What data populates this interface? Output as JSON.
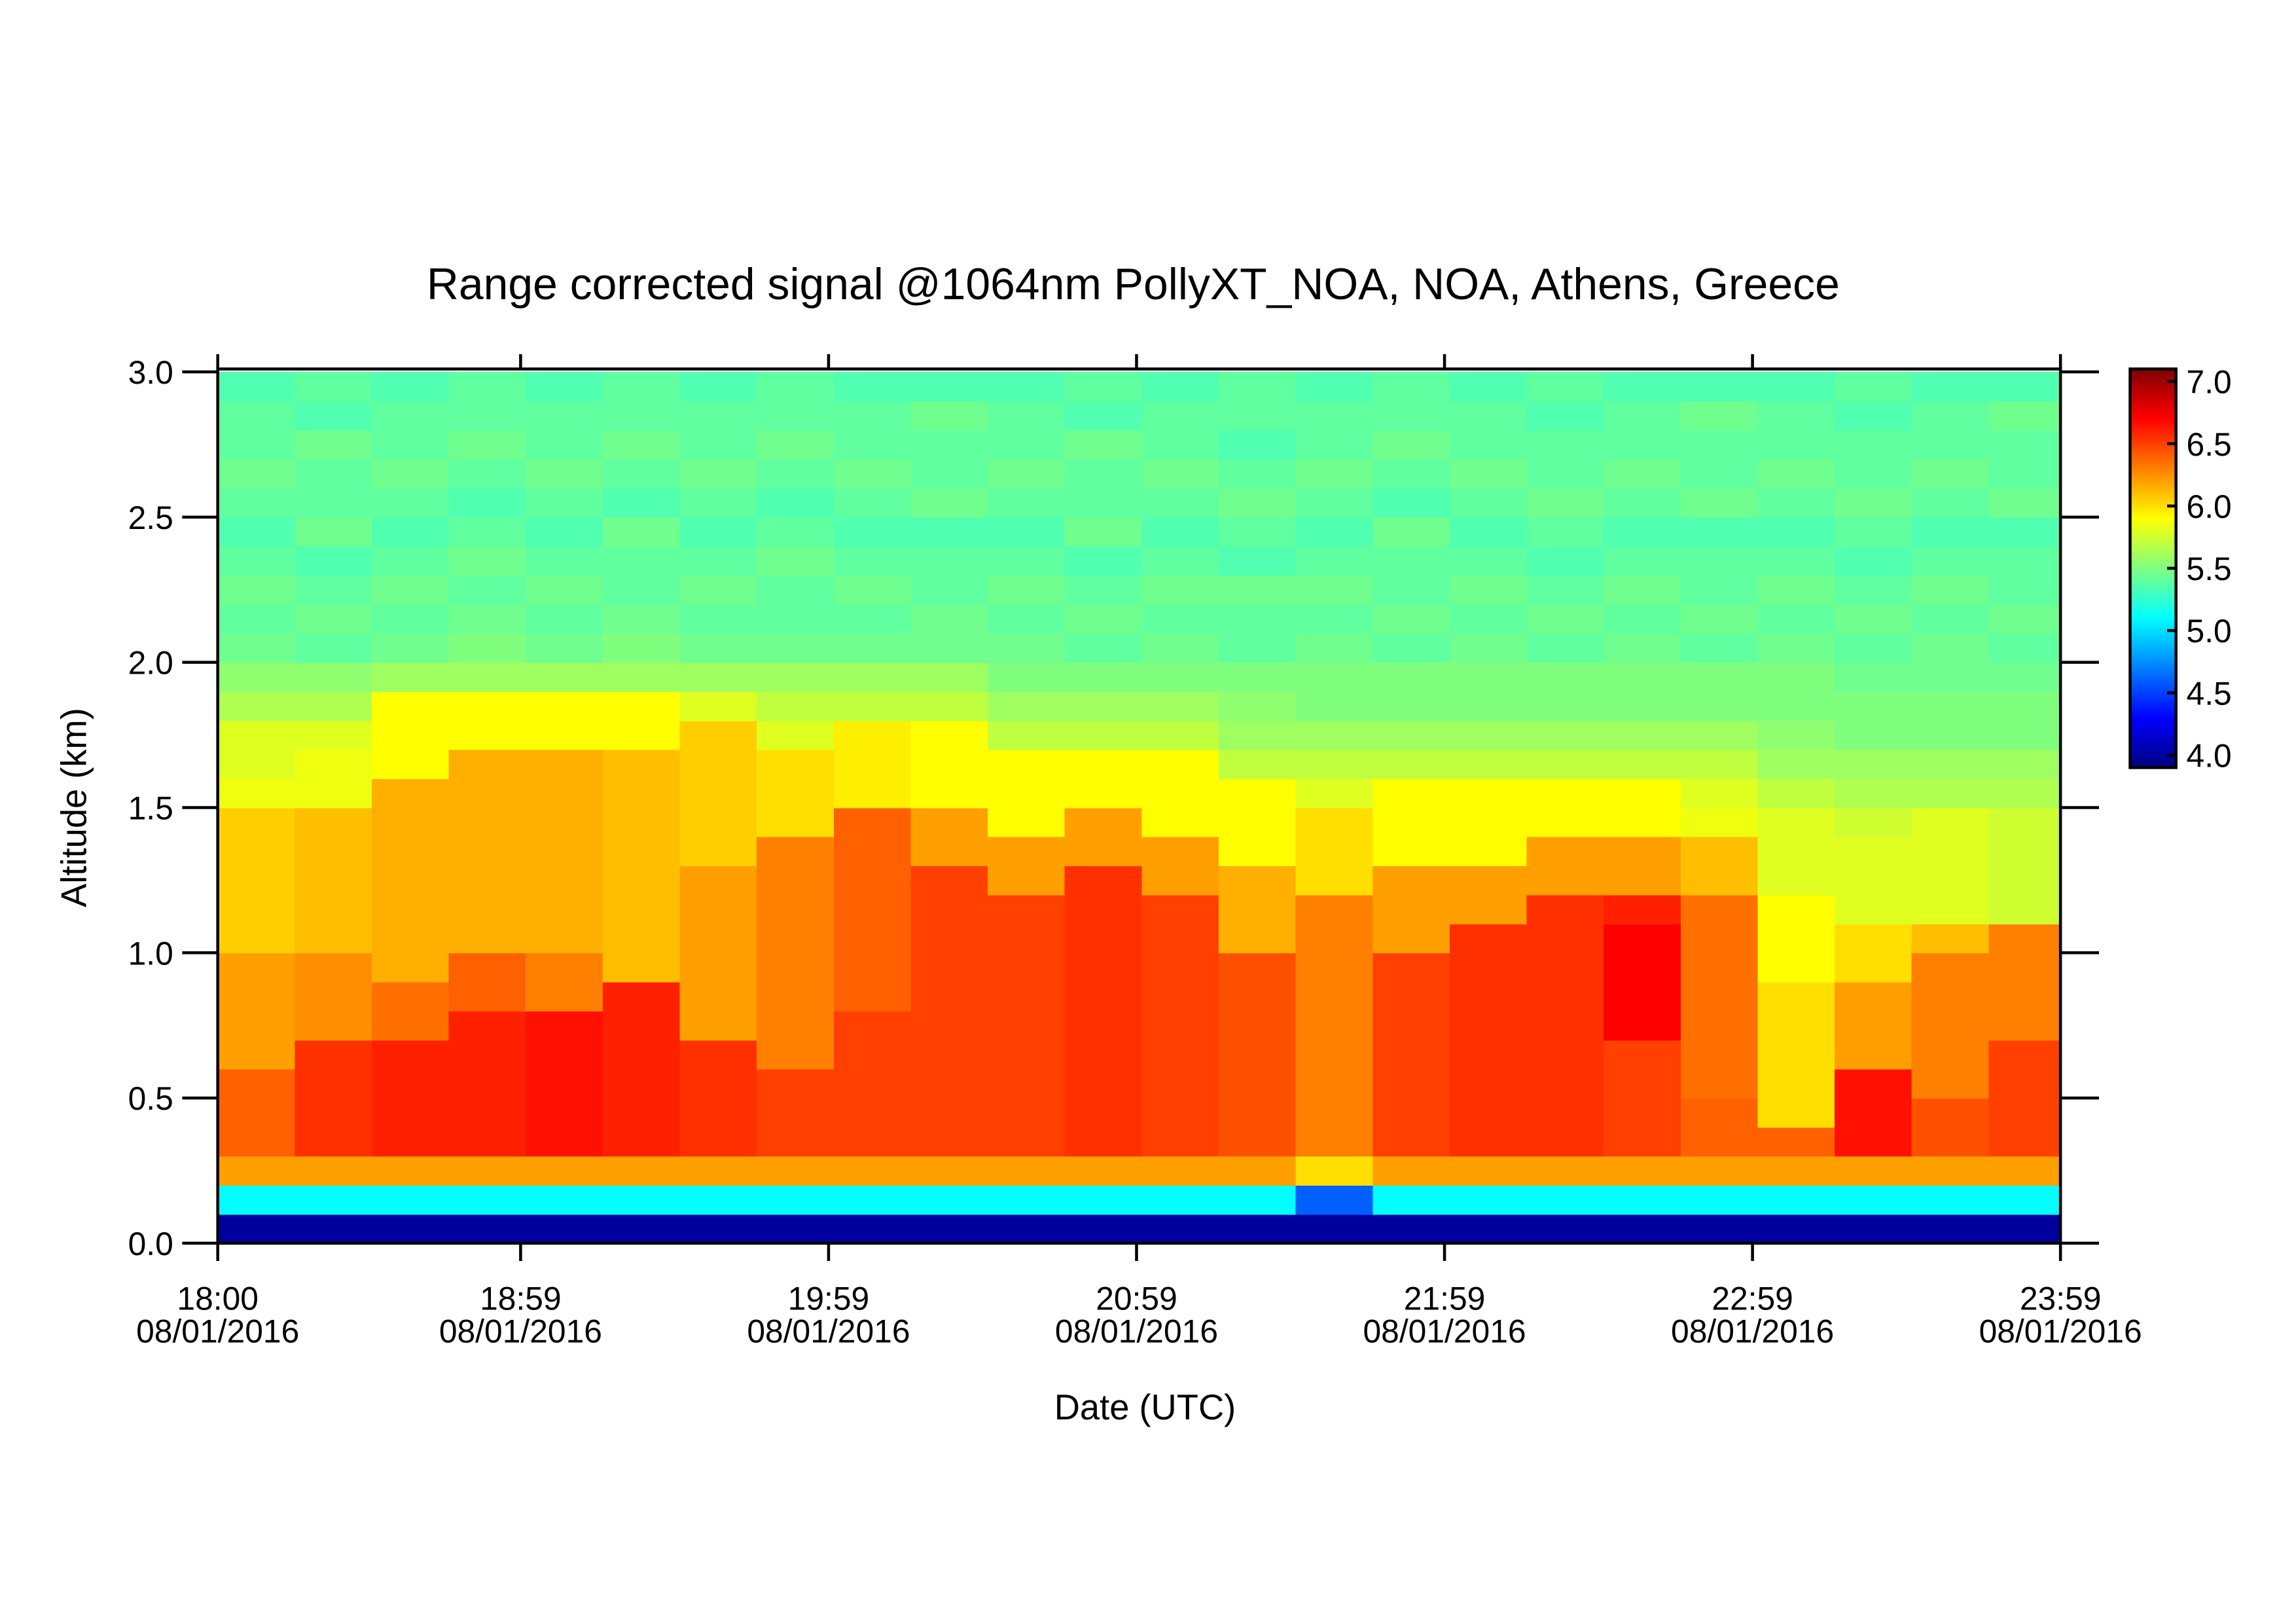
{
  "chart_data": {
    "type": "heatmap",
    "title": "Range corrected signal @1064nm  PollyXT_NOA, NOA, Athens, Greece",
    "xlabel": "Date (UTC)",
    "ylabel": "Altitude (km)",
    "xlim": [
      "18:00",
      "23:59"
    ],
    "xticks": [
      "18:00",
      "18:59",
      "19:59",
      "20:59",
      "21:59",
      "22:59",
      "23:59"
    ],
    "xtick_dates": [
      "08/01/2016",
      "08/01/2016",
      "08/01/2016",
      "08/01/2016",
      "08/01/2016",
      "08/01/2016",
      "08/01/2016"
    ],
    "ylim": [
      0,
      3.01
    ],
    "yticks": [
      {
        "value": 0,
        "label": "0.0"
      },
      0.5,
      {
        "value": 1,
        "label": "1.0"
      },
      1.5,
      {
        "value": 2,
        "label": "2.0"
      },
      2.5,
      {
        "value": 3,
        "label": "3.0"
      }
    ],
    "zlim": [
      3.9,
      7.1
    ],
    "zticks": [
      {
        "value": 4,
        "label": "4.0"
      },
      4.5,
      {
        "value": 5,
        "label": "5.0"
      },
      5.5,
      {
        "value": 6,
        "label": "6.0"
      },
      6.5,
      {
        "value": 7,
        "label": "7.0"
      }
    ],
    "colormap": "jet",
    "x_edges": [
      "18:00",
      "18:15",
      "18:30",
      "18:45",
      "19:00",
      "19:15",
      "19:30",
      "19:45",
      "20:00",
      "20:15",
      "20:30",
      "20:45",
      "21:00",
      "21:15",
      "21:30",
      "21:45",
      "22:00",
      "22:15",
      "22:30",
      "22:45",
      "23:00",
      "23:15",
      "23:30",
      "23:45",
      "23:59"
    ],
    "y_edges": [
      0,
      0.1,
      0.2,
      0.3,
      0.4,
      0.5,
      0.6,
      0.7,
      0.8,
      0.9,
      1.0,
      1.1,
      1.2,
      1.3,
      1.4,
      1.5,
      1.6,
      1.7,
      1.8,
      1.9,
      2.0,
      2.1,
      2.2,
      2.3,
      2.4,
      2.5,
      2.6,
      2.7,
      2.8,
      2.9,
      3.0
    ],
    "z": [
      [
        4.0,
        5.1,
        6.2,
        6.4,
        6.4,
        6.4,
        6.2,
        6.2,
        6.2,
        6.2,
        6.05,
        6.05,
        6.05,
        6.05,
        6.05,
        5.85,
        5.8,
        5.8,
        5.65,
        5.55,
        5.45,
        5.4,
        5.45,
        5.4,
        5.35,
        5.4,
        5.45,
        5.4,
        5.4,
        5.35
      ],
      [
        4.0,
        5.1,
        6.2,
        6.55,
        6.55,
        6.55,
        6.55,
        6.25,
        6.25,
        6.25,
        6.1,
        6.1,
        6.1,
        6.1,
        6.1,
        5.85,
        5.85,
        5.8,
        5.65,
        5.55,
        5.4,
        5.45,
        5.4,
        5.35,
        5.45,
        5.4,
        5.4,
        5.45,
        5.35,
        5.4
      ],
      [
        4.0,
        5.1,
        6.2,
        6.6,
        6.6,
        6.6,
        6.6,
        6.35,
        6.35,
        6.15,
        6.15,
        6.15,
        6.15,
        6.15,
        6.15,
        6.15,
        5.9,
        5.9,
        5.9,
        5.6,
        5.45,
        5.4,
        5.45,
        5.4,
        5.35,
        5.4,
        5.45,
        5.4,
        5.4,
        5.35
      ],
      [
        4.0,
        5.1,
        6.2,
        6.6,
        6.6,
        6.6,
        6.6,
        6.6,
        6.4,
        6.4,
        6.15,
        6.15,
        6.15,
        6.15,
        6.15,
        6.15,
        6.15,
        5.9,
        5.9,
        5.6,
        5.5,
        5.45,
        5.4,
        5.45,
        5.4,
        5.35,
        5.4,
        5.45,
        5.4,
        5.4
      ],
      [
        4.0,
        5.1,
        6.2,
        6.65,
        6.65,
        6.65,
        6.65,
        6.65,
        6.3,
        6.3,
        6.15,
        6.15,
        6.15,
        6.15,
        6.15,
        6.15,
        6.15,
        5.9,
        5.9,
        5.6,
        5.45,
        5.4,
        5.45,
        5.4,
        5.35,
        5.4,
        5.45,
        5.4,
        5.4,
        5.35
      ],
      [
        4.0,
        5.1,
        6.2,
        6.6,
        6.6,
        6.6,
        6.6,
        6.6,
        6.6,
        6.1,
        6.1,
        6.1,
        6.1,
        6.1,
        6.1,
        6.1,
        6.1,
        5.9,
        5.9,
        5.6,
        5.5,
        5.45,
        5.4,
        5.4,
        5.45,
        5.35,
        5.4,
        5.45,
        5.4,
        5.4
      ],
      [
        4.0,
        5.1,
        6.2,
        6.55,
        6.55,
        6.55,
        6.55,
        6.2,
        6.2,
        6.2,
        6.2,
        6.2,
        6.2,
        6.05,
        6.05,
        6.05,
        6.05,
        6.05,
        5.8,
        5.6,
        5.45,
        5.4,
        5.45,
        5.4,
        5.35,
        5.4,
        5.45,
        5.4,
        5.4,
        5.35
      ],
      [
        4.0,
        5.1,
        6.2,
        6.5,
        6.5,
        6.5,
        6.3,
        6.3,
        6.3,
        6.3,
        6.3,
        6.3,
        6.3,
        6.3,
        6.0,
        6.0,
        6.0,
        5.8,
        5.7,
        5.6,
        5.45,
        5.4,
        5.4,
        5.45,
        5.4,
        5.35,
        5.4,
        5.45,
        5.4,
        5.4
      ],
      [
        4.0,
        5.1,
        6.2,
        6.5,
        6.5,
        6.5,
        6.5,
        6.5,
        6.4,
        6.4,
        6.4,
        6.4,
        6.4,
        6.4,
        6.4,
        5.95,
        5.95,
        5.95,
        5.7,
        5.6,
        5.45,
        5.4,
        5.45,
        5.4,
        5.35,
        5.4,
        5.45,
        5.4,
        5.4,
        5.35
      ],
      [
        4.0,
        5.1,
        6.2,
        6.5,
        6.5,
        6.5,
        6.5,
        6.5,
        6.5,
        6.5,
        6.5,
        6.5,
        6.5,
        6.2,
        6.2,
        5.9,
        5.9,
        5.9,
        5.7,
        5.6,
        5.45,
        5.45,
        5.4,
        5.4,
        5.35,
        5.45,
        5.4,
        5.4,
        5.45,
        5.35
      ],
      [
        4.0,
        5.1,
        6.2,
        6.5,
        6.5,
        6.5,
        6.5,
        6.5,
        6.5,
        6.5,
        6.5,
        6.5,
        6.2,
        6.2,
        5.9,
        5.9,
        5.9,
        5.7,
        5.6,
        5.5,
        5.45,
        5.4,
        5.45,
        5.4,
        5.35,
        5.4,
        5.45,
        5.4,
        5.4,
        5.35
      ],
      [
        4.0,
        5.1,
        6.2,
        6.55,
        6.55,
        6.55,
        6.55,
        6.55,
        6.55,
        6.55,
        6.55,
        6.55,
        6.55,
        6.2,
        6.2,
        5.9,
        5.9,
        5.7,
        5.6,
        5.5,
        5.4,
        5.45,
        5.4,
        5.35,
        5.45,
        5.4,
        5.4,
        5.45,
        5.35,
        5.4
      ],
      [
        4.0,
        5.1,
        6.2,
        6.5,
        6.5,
        6.5,
        6.5,
        6.5,
        6.5,
        6.5,
        6.5,
        6.5,
        6.2,
        6.2,
        5.9,
        5.9,
        5.9,
        5.7,
        5.6,
        5.5,
        5.45,
        5.4,
        5.45,
        5.4,
        5.35,
        5.4,
        5.45,
        5.4,
        5.4,
        5.35
      ],
      [
        4.0,
        5.1,
        6.2,
        6.45,
        6.45,
        6.45,
        6.45,
        6.45,
        6.45,
        6.45,
        6.15,
        6.15,
        6.15,
        5.9,
        5.9,
        5.9,
        5.7,
        5.6,
        5.55,
        5.5,
        5.4,
        5.4,
        5.45,
        5.35,
        5.4,
        5.45,
        5.4,
        5.35,
        5.4,
        5.4
      ],
      [
        4.0,
        4.6,
        6.0,
        6.3,
        6.3,
        6.3,
        6.3,
        6.3,
        6.3,
        6.3,
        6.3,
        6.3,
        6.0,
        6.0,
        6.0,
        5.8,
        5.7,
        5.6,
        5.5,
        5.5,
        5.45,
        5.4,
        5.45,
        5.4,
        5.35,
        5.4,
        5.45,
        5.4,
        5.4,
        5.35
      ],
      [
        4.0,
        5.1,
        6.2,
        6.5,
        6.5,
        6.5,
        6.5,
        6.5,
        6.5,
        6.5,
        6.2,
        6.2,
        6.2,
        5.9,
        5.9,
        5.9,
        5.7,
        5.6,
        5.5,
        5.5,
        5.4,
        5.45,
        5.4,
        5.4,
        5.45,
        5.35,
        5.4,
        5.45,
        5.4,
        5.4
      ],
      [
        4.0,
        5.1,
        6.2,
        6.55,
        6.55,
        6.55,
        6.55,
        6.55,
        6.55,
        6.55,
        6.55,
        6.2,
        6.2,
        5.9,
        5.9,
        5.9,
        5.7,
        5.6,
        5.5,
        5.5,
        5.45,
        5.4,
        5.45,
        5.4,
        5.35,
        5.4,
        5.45,
        5.4,
        5.4,
        5.35
      ],
      [
        4.0,
        5.1,
        6.2,
        6.55,
        6.55,
        6.55,
        6.55,
        6.55,
        6.55,
        6.55,
        6.55,
        6.55,
        6.2,
        6.2,
        5.9,
        5.9,
        5.7,
        5.6,
        5.5,
        5.5,
        5.4,
        5.45,
        5.4,
        5.35,
        5.4,
        5.45,
        5.4,
        5.4,
        5.35,
        5.4
      ],
      [
        4.0,
        5.1,
        6.2,
        6.5,
        6.5,
        6.5,
        6.5,
        6.7,
        6.7,
        6.7,
        6.7,
        6.6,
        6.2,
        6.2,
        5.9,
        5.9,
        5.7,
        5.6,
        5.5,
        5.5,
        5.45,
        5.4,
        5.45,
        5.4,
        5.35,
        5.4,
        5.45,
        5.4,
        5.4,
        5.35
      ],
      [
        4.0,
        5.1,
        6.2,
        6.4,
        6.4,
        6.35,
        6.35,
        6.35,
        6.35,
        6.35,
        6.35,
        6.35,
        6.1,
        6.1,
        5.85,
        5.8,
        5.7,
        5.6,
        5.5,
        5.5,
        5.4,
        5.45,
        5.4,
        5.4,
        5.35,
        5.45,
        5.4,
        5.4,
        5.45,
        5.35
      ],
      [
        4.0,
        5.1,
        6.2,
        6.4,
        6.0,
        6.0,
        6.0,
        6.0,
        6.0,
        5.9,
        5.9,
        5.9,
        5.8,
        5.8,
        5.8,
        5.7,
        5.6,
        5.55,
        5.5,
        5.5,
        5.45,
        5.4,
        5.45,
        5.4,
        5.35,
        5.4,
        5.45,
        5.4,
        5.4,
        5.35
      ],
      [
        4.0,
        5.1,
        6.2,
        6.65,
        6.65,
        6.65,
        6.2,
        6.2,
        6.2,
        6.0,
        6.0,
        5.8,
        5.8,
        5.8,
        5.75,
        5.65,
        5.6,
        5.5,
        5.5,
        5.45,
        5.4,
        5.45,
        5.4,
        5.35,
        5.4,
        5.45,
        5.4,
        5.4,
        5.35,
        5.4
      ],
      [
        4.0,
        5.1,
        6.2,
        6.45,
        6.45,
        6.3,
        6.3,
        6.3,
        6.3,
        6.3,
        6.1,
        5.8,
        5.8,
        5.8,
        5.8,
        5.65,
        5.6,
        5.5,
        5.5,
        5.45,
        5.45,
        5.4,
        5.45,
        5.4,
        5.35,
        5.4,
        5.45,
        5.4,
        5.4,
        5.35
      ],
      [
        4.0,
        5.1,
        6.2,
        6.5,
        6.5,
        6.5,
        6.5,
        6.3,
        6.3,
        6.3,
        6.3,
        5.75,
        5.75,
        5.75,
        5.75,
        5.65,
        5.6,
        5.5,
        5.5,
        5.45,
        5.4,
        5.45,
        5.4,
        5.4,
        5.35,
        5.45,
        5.4,
        5.4,
        5.45,
        5.35
      ]
    ]
  }
}
